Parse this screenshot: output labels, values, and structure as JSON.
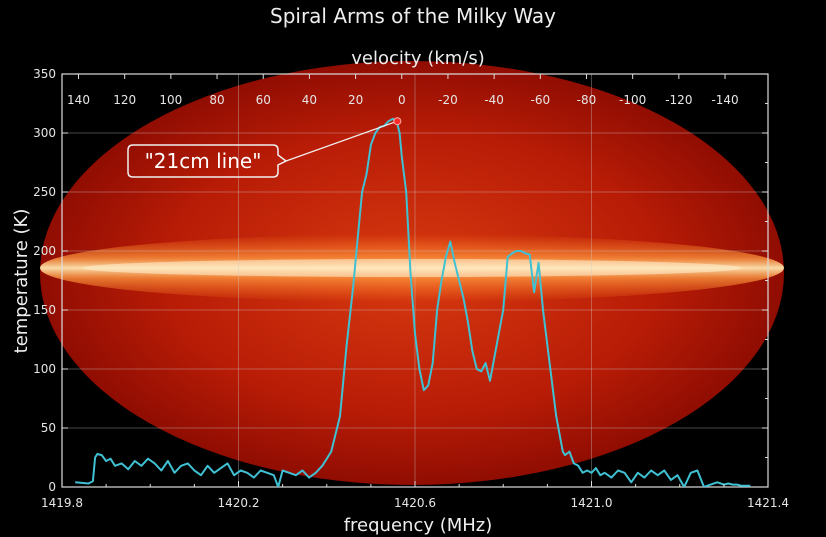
{
  "chart_data": {
    "type": "line",
    "title": "Spiral Arms of the Milky Way",
    "xlabel": "frequency (MHz)",
    "ylabel": "temperature (K)",
    "x2label": "velocity (km/s)",
    "xlim": [
      1419.8,
      1421.4
    ],
    "ylim": [
      0,
      350
    ],
    "xticks": [
      1419.8,
      1420.2,
      1420.6,
      1421.0,
      1421.4
    ],
    "xtick_labels": [
      "1419.8",
      "1420.2",
      "1420.6",
      "1421.0",
      "1421.4"
    ],
    "yticks": [
      0,
      50,
      100,
      150,
      200,
      250,
      300,
      350
    ],
    "ytick_labels": [
      "0",
      "50",
      "100",
      "150",
      "200",
      "250",
      "300",
      "350"
    ],
    "x2ticks": [
      140,
      120,
      100,
      80,
      60,
      40,
      20,
      0,
      -20,
      -40,
      -60,
      -80,
      -100,
      -120,
      -140
    ],
    "x2tick_labels": [
      "140",
      "120",
      "100",
      "80",
      "60",
      "40",
      "20",
      "0",
      "-20",
      "-40",
      "-60",
      "-80",
      "-100",
      "-120",
      "-140"
    ],
    "grid": true,
    "background": "all-sky 21cm map (red elliptical projection)",
    "series": [
      {
        "color": "#3fc1d3",
        "x": [
          1419.83,
          1419.86,
          1419.87,
          1419.875,
          1419.88,
          1419.89,
          1419.9,
          1419.91,
          1419.92,
          1419.935,
          1419.95,
          1419.965,
          1419.98,
          1419.995,
          1420.01,
          1420.025,
          1420.04,
          1420.055,
          1420.07,
          1420.085,
          1420.1,
          1420.115,
          1420.13,
          1420.145,
          1420.16,
          1420.175,
          1420.19,
          1420.205,
          1420.22,
          1420.235,
          1420.25,
          1420.265,
          1420.28,
          1420.29,
          1420.3,
          1420.315,
          1420.33,
          1420.345,
          1420.36,
          1420.375,
          1420.39,
          1420.41,
          1420.43,
          1420.445,
          1420.46,
          1420.47,
          1420.48,
          1420.49,
          1420.5,
          1420.51,
          1420.52,
          1420.53,
          1420.54,
          1420.55,
          1420.56,
          1420.565,
          1420.57,
          1420.58,
          1420.59,
          1420.6,
          1420.61,
          1420.62,
          1420.63,
          1420.64,
          1420.65,
          1420.66,
          1420.67,
          1420.68,
          1420.69,
          1420.7,
          1420.71,
          1420.72,
          1420.73,
          1420.74,
          1420.75,
          1420.76,
          1420.77,
          1420.78,
          1420.79,
          1420.8,
          1420.81,
          1420.82,
          1420.83,
          1420.84,
          1420.85,
          1420.86,
          1420.87,
          1420.88,
          1420.89,
          1420.9,
          1420.91,
          1420.92,
          1420.93,
          1420.935,
          1420.94,
          1420.95,
          1420.96,
          1420.97,
          1420.98,
          1420.99,
          1421.0,
          1421.01,
          1421.02,
          1421.03,
          1421.045,
          1421.06,
          1421.075,
          1421.09,
          1421.105,
          1421.12,
          1421.135,
          1421.15,
          1421.165,
          1421.18,
          1421.195,
          1421.21,
          1421.225,
          1421.24,
          1421.255,
          1421.27,
          1421.285,
          1421.3,
          1421.31,
          1421.32,
          1421.33,
          1421.34,
          1421.35,
          1421.36
        ],
        "y": [
          4,
          3,
          5,
          25,
          28,
          27,
          22,
          24,
          18,
          20,
          15,
          22,
          18,
          24,
          20,
          14,
          22,
          12,
          18,
          20,
          14,
          10,
          18,
          12,
          16,
          20,
          10,
          14,
          12,
          8,
          14,
          12,
          10,
          0,
          14,
          12,
          10,
          14,
          8,
          12,
          18,
          30,
          60,
          120,
          170,
          210,
          250,
          265,
          290,
          300,
          305,
          306,
          310,
          312,
          308,
          300,
          280,
          250,
          180,
          130,
          100,
          82,
          86,
          105,
          150,
          175,
          195,
          208,
          190,
          175,
          160,
          140,
          115,
          100,
          98,
          105,
          90,
          110,
          130,
          150,
          195,
          198,
          200,
          200,
          198,
          197,
          165,
          190,
          150,
          120,
          90,
          60,
          40,
          30,
          27,
          30,
          20,
          18,
          12,
          14,
          12,
          16,
          10,
          12,
          8,
          14,
          12,
          4,
          12,
          8,
          14,
          10,
          14,
          6,
          10,
          0,
          12,
          14,
          0,
          2,
          4,
          2,
          3,
          2,
          2,
          1,
          1,
          1
        ]
      }
    ],
    "annotations": [
      {
        "text": "\"21cm line\"",
        "x": 1420.56,
        "y": 310
      }
    ]
  }
}
